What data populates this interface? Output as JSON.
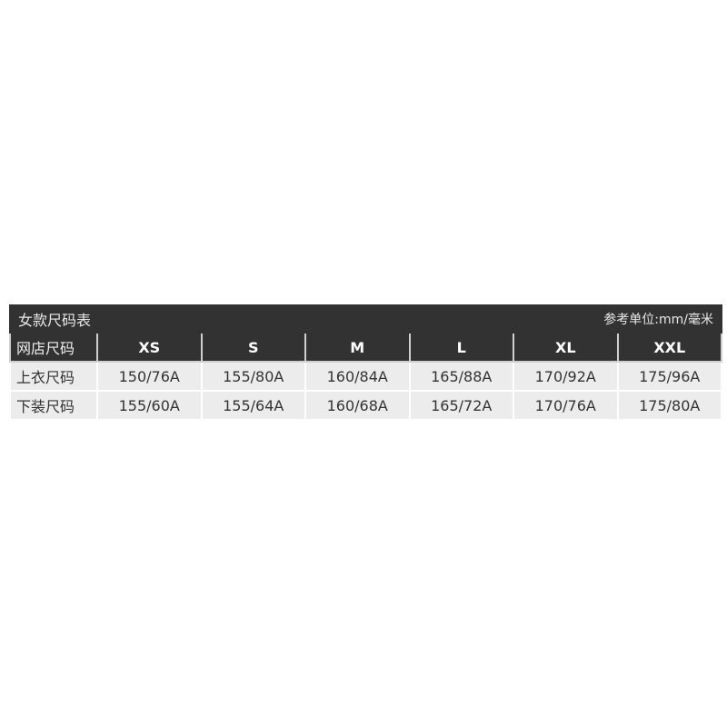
{
  "title": "女款尺码表",
  "unit": "参考单位:mm/毫米",
  "header": {
    "label": "网店尺码",
    "sizes": [
      "XS",
      "S",
      "M",
      "L",
      "XL",
      "XXL"
    ]
  },
  "rows": [
    {
      "label": "上衣尺码",
      "values": [
        "150/76A",
        "155/80A",
        "160/84A",
        "165/88A",
        "170/92A",
        "175/96A"
      ]
    },
    {
      "label": "下装尺码",
      "values": [
        "155/60A",
        "155/64A",
        "160/68A",
        "165/72A",
        "170/76A",
        "175/80A"
      ]
    }
  ]
}
